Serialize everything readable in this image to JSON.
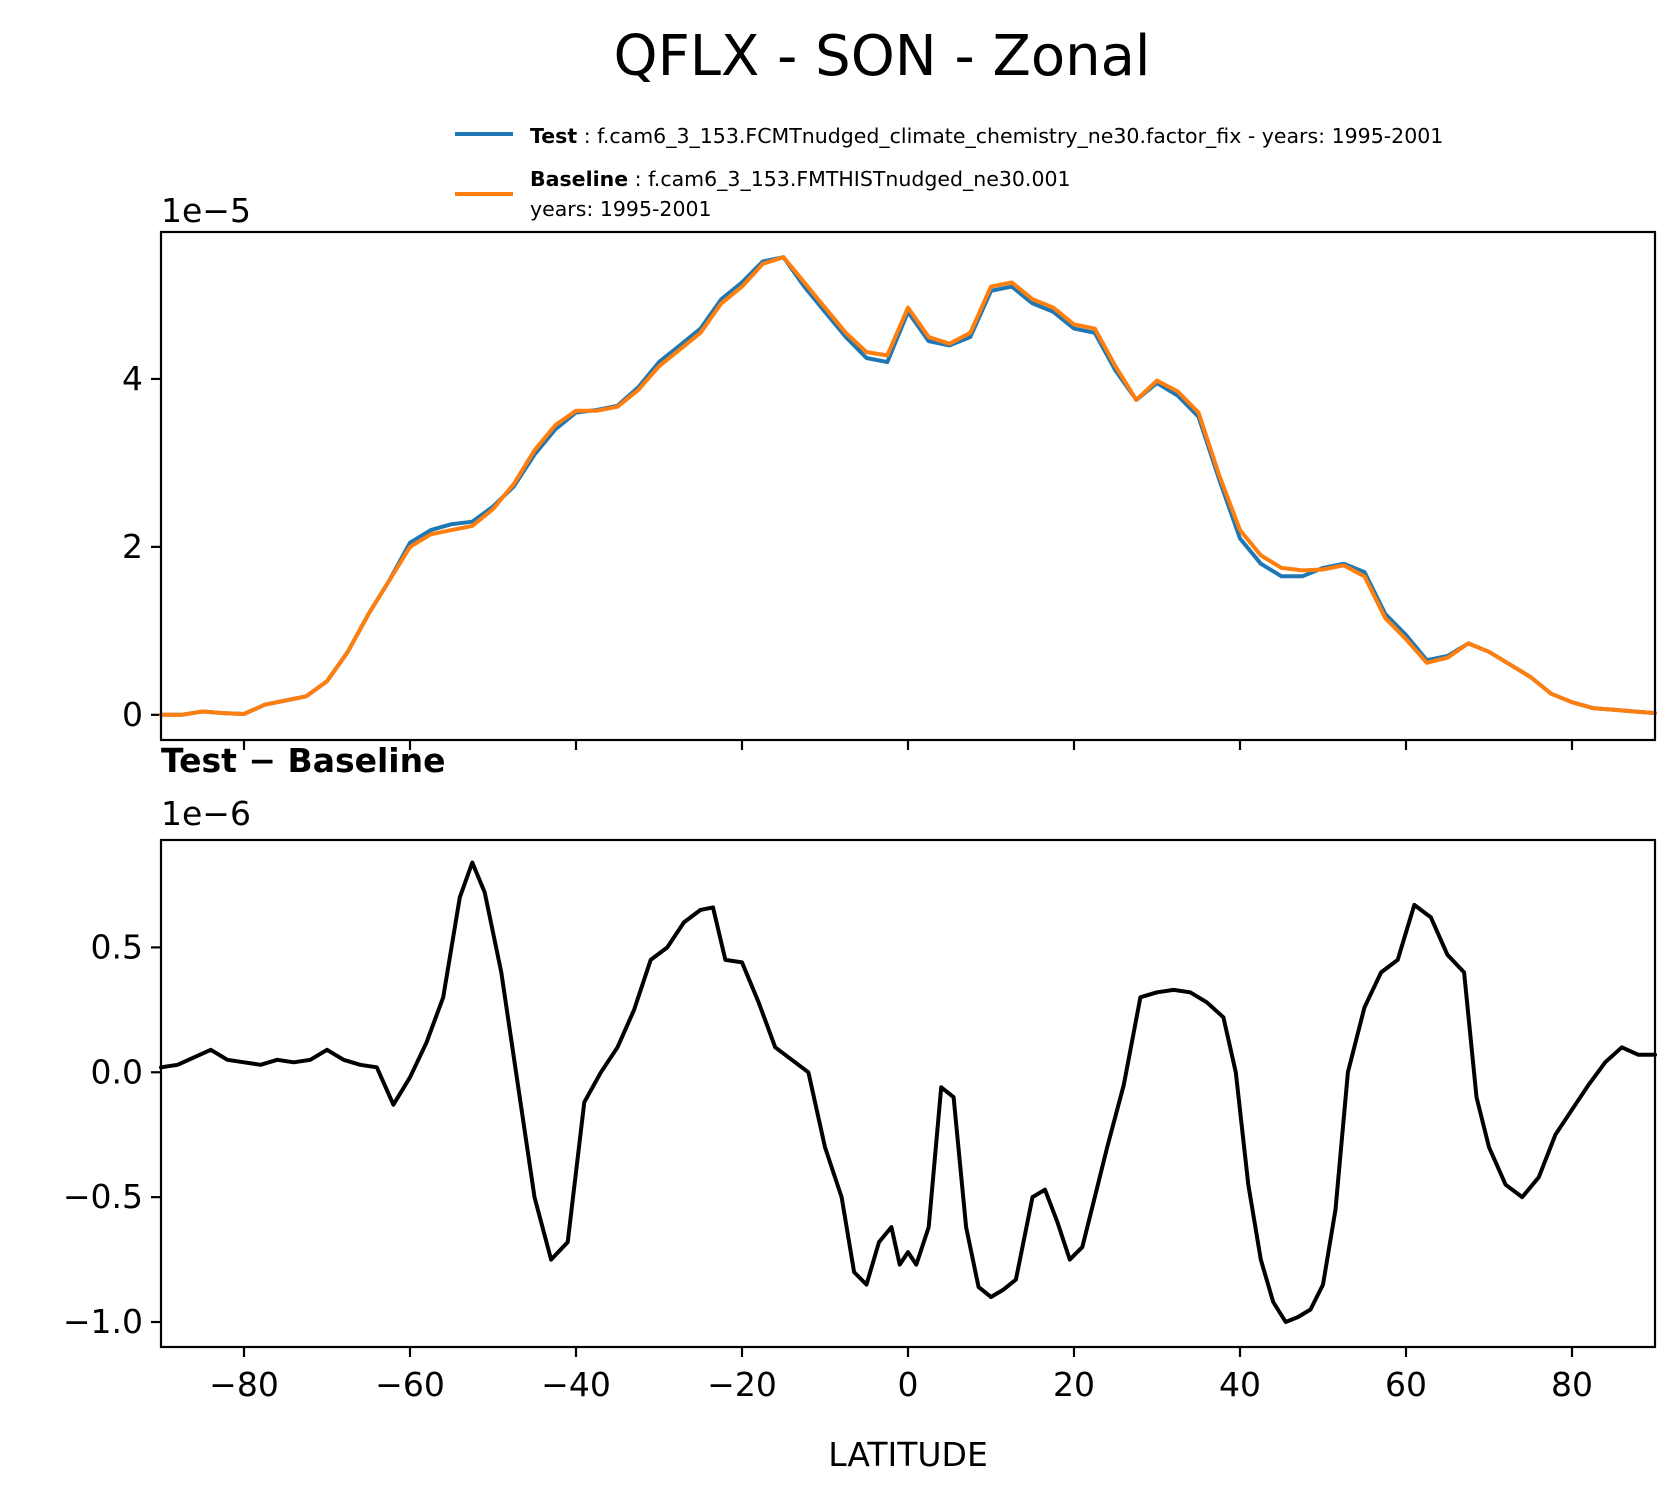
{
  "title": "QFLX - SON - Zonal",
  "legend": [
    {
      "key": "Test",
      "sep": " : ",
      "text": "f.cam6_3_153.FCMTnudged_climate_chemistry_ne30.factor_fix - years: 1995-2001",
      "color": "#1f77b4"
    },
    {
      "key": "Baseline",
      "sep": " : ",
      "text": "f.cam6_3_153.FMTHISTnudged_ne30.001",
      "text2": "years: 1995-2001",
      "color": "#ff7f0e"
    }
  ],
  "top_panel": {
    "offset_label": "1e−5",
    "yticks": [
      "0",
      "2",
      "4"
    ]
  },
  "bottom_panel": {
    "title": "Test − Baseline",
    "offset_label": "1e−6",
    "yticks": [
      "−1.0",
      "−0.5",
      "0.0",
      "0.5"
    ]
  },
  "xticks": [
    "−80",
    "−60",
    "−40",
    "−20",
    "0",
    "20",
    "40",
    "60",
    "80"
  ],
  "xlabel": "LATITUDE",
  "chart_data": [
    {
      "type": "line",
      "xlim": [
        -90,
        90
      ],
      "ylim": [
        -3e-06,
        5.75e-05
      ],
      "yscale_label": "1e−5",
      "yticks": [
        0,
        2e-05,
        4e-05
      ],
      "x": [
        -90,
        -87.5,
        -85,
        -82.5,
        -80,
        -77.5,
        -75,
        -72.5,
        -70,
        -67.5,
        -65,
        -62.5,
        -60,
        -57.5,
        -55,
        -52.5,
        -50,
        -47.5,
        -45,
        -42.5,
        -40,
        -37.5,
        -35,
        -32.5,
        -30,
        -27.5,
        -25,
        -22.5,
        -20,
        -17.5,
        -15,
        -12.5,
        -10,
        -7.5,
        -5,
        -2.5,
        0,
        2.5,
        5,
        7.5,
        10,
        12.5,
        15,
        17.5,
        20,
        22.5,
        25,
        27.5,
        30,
        32.5,
        35,
        37.5,
        40,
        42.5,
        45,
        47.5,
        50,
        52.5,
        55,
        57.5,
        60,
        62.5,
        65,
        67.5,
        70,
        72.5,
        75,
        77.5,
        80,
        82.5,
        85,
        87.5,
        90
      ],
      "series": [
        {
          "name": "Test",
          "color": "#1f77b4",
          "values": [
            0.0,
            0.0,
            4e-07,
            2e-07,
            1e-07,
            1.2e-06,
            1.7e-06,
            2.2e-06,
            4e-06,
            7.5e-06,
            1.2e-05,
            1.6e-05,
            2.05e-05,
            2.2e-05,
            2.27e-05,
            2.3e-05,
            2.48e-05,
            2.72e-05,
            3.1e-05,
            3.4e-05,
            3.6e-05,
            3.63e-05,
            3.68e-05,
            3.9e-05,
            4.2e-05,
            4.4e-05,
            4.6e-05,
            4.95e-05,
            5.15e-05,
            5.4e-05,
            5.45e-05,
            5.1e-05,
            4.8e-05,
            4.5e-05,
            4.25e-05,
            4.2e-05,
            4.8e-05,
            4.45e-05,
            4.4e-05,
            4.5e-05,
            5.05e-05,
            5.1e-05,
            4.9e-05,
            4.8e-05,
            4.6e-05,
            4.55e-05,
            4.1e-05,
            3.75e-05,
            3.95e-05,
            3.8e-05,
            3.55e-05,
            2.8e-05,
            2.1e-05,
            1.8e-05,
            1.65e-05,
            1.65e-05,
            1.75e-05,
            1.8e-05,
            1.7e-05,
            1.2e-05,
            9.5e-06,
            6.5e-06,
            7e-06,
            8.5e-06,
            7.5e-06,
            6e-06,
            4.5e-06,
            2.5e-06,
            1.5e-06,
            8e-07,
            6e-07,
            4e-07,
            2e-07
          ]
        },
        {
          "name": "Baseline",
          "color": "#ff7f0e",
          "values": [
            0.0,
            0.0,
            4e-07,
            2e-07,
            1e-07,
            1.2e-06,
            1.7e-06,
            2.2e-06,
            4e-06,
            7.5e-06,
            1.2e-05,
            1.6e-05,
            2e-05,
            2.15e-05,
            2.2e-05,
            2.25e-05,
            2.45e-05,
            2.75e-05,
            3.15e-05,
            3.45e-05,
            3.62e-05,
            3.62e-05,
            3.67e-05,
            3.87e-05,
            4.15e-05,
            4.35e-05,
            4.55e-05,
            4.9e-05,
            5.1e-05,
            5.37e-05,
            5.45e-05,
            5.15e-05,
            4.85e-05,
            4.55e-05,
            4.32e-05,
            4.28e-05,
            4.85e-05,
            4.5e-05,
            4.42e-05,
            4.55e-05,
            5.1e-05,
            5.15e-05,
            4.95e-05,
            4.85e-05,
            4.65e-05,
            4.6e-05,
            4.15e-05,
            3.75e-05,
            3.98e-05,
            3.85e-05,
            3.6e-05,
            2.85e-05,
            2.2e-05,
            1.9e-05,
            1.75e-05,
            1.72e-05,
            1.73e-05,
            1.78e-05,
            1.65e-05,
            1.15e-05,
            9e-06,
            6.2e-06,
            6.8e-06,
            8.5e-06,
            7.5e-06,
            6e-06,
            4.5e-06,
            2.5e-06,
            1.5e-06,
            8e-07,
            6e-07,
            4e-07,
            2e-07
          ]
        }
      ]
    },
    {
      "type": "line",
      "title": "Test − Baseline",
      "xlabel": "LATITUDE",
      "xlim": [
        -90,
        90
      ],
      "ylim": [
        -1.1e-06,
        9.3e-07
      ],
      "yscale_label": "1e−6",
      "yticks": [
        -1e-06,
        -5e-07,
        0.0,
        5e-07
      ],
      "xticks": [
        -80,
        -60,
        -40,
        -20,
        0,
        20,
        40,
        60,
        80
      ],
      "x": [
        -90,
        -88,
        -86,
        -84,
        -82,
        -80,
        -78,
        -76,
        -74,
        -72,
        -70,
        -68,
        -66,
        -64,
        -62,
        -60,
        -58,
        -56,
        -54,
        -52.5,
        -51,
        -49,
        -47,
        -45,
        -43,
        -41,
        -39,
        -37,
        -35,
        -33,
        -31,
        -29,
        -27,
        -25,
        -23.5,
        -22,
        -20,
        -18,
        -16,
        -14,
        -12,
        -10,
        -8,
        -6.5,
        -5,
        -3.5,
        -2,
        -1,
        0,
        1,
        2.5,
        4,
        5.5,
        7,
        8.5,
        10,
        11.5,
        13,
        15,
        16.5,
        18,
        19.5,
        21,
        22.5,
        24,
        26,
        28,
        30,
        32,
        34,
        36,
        38,
        39.5,
        41,
        42.5,
        44,
        45.5,
        47,
        48.5,
        50,
        51.5,
        53,
        55,
        57,
        59,
        61,
        63,
        65,
        67,
        68.5,
        70,
        72,
        74,
        76,
        78,
        80,
        82,
        84,
        86,
        88,
        90
      ],
      "series": [
        {
          "name": "Test − Baseline",
          "color": "#000000",
          "values": [
            2e-08,
            3e-08,
            6e-08,
            9e-08,
            5e-08,
            4e-08,
            3e-08,
            5e-08,
            4e-08,
            5e-08,
            9e-08,
            5e-08,
            3e-08,
            2e-08,
            -1.3e-07,
            -2e-08,
            1.2e-07,
            3e-07,
            7e-07,
            8.4e-07,
            7.2e-07,
            4e-07,
            -5e-08,
            -5e-07,
            -7.5e-07,
            -6.8e-07,
            -1.2e-07,
            0.0,
            1e-07,
            2.5e-07,
            4.5e-07,
            5e-07,
            6e-07,
            6.5e-07,
            6.6e-07,
            4.5e-07,
            4.4e-07,
            2.8e-07,
            1e-07,
            5e-08,
            0.0,
            -3e-07,
            -5e-07,
            -8e-07,
            -8.5e-07,
            -6.8e-07,
            -6.2e-07,
            -7.7e-07,
            -7.2e-07,
            -7.7e-07,
            -6.2e-07,
            -6e-08,
            -1e-07,
            -6.2e-07,
            -8.6e-07,
            -9e-07,
            -8.7e-07,
            -8.3e-07,
            -5e-07,
            -4.7e-07,
            -6e-07,
            -7.5e-07,
            -7e-07,
            -5e-07,
            -3e-07,
            -5e-08,
            3e-07,
            3.2e-07,
            3.3e-07,
            3.2e-07,
            2.8e-07,
            2.2e-07,
            0.0,
            -4.5e-07,
            -7.5e-07,
            -9.2e-07,
            -1e-06,
            -9.8e-07,
            -9.5e-07,
            -8.5e-07,
            -5.5e-07,
            0.0,
            2.6e-07,
            4e-07,
            4.5e-07,
            6.7e-07,
            6.2e-07,
            4.7e-07,
            4e-07,
            -1e-07,
            -3e-07,
            -4.5e-07,
            -5e-07,
            -4.2e-07,
            -2.5e-07,
            -1.5e-07,
            -5e-08,
            4e-08,
            1e-07,
            7e-08,
            7e-08
          ]
        }
      ]
    }
  ]
}
